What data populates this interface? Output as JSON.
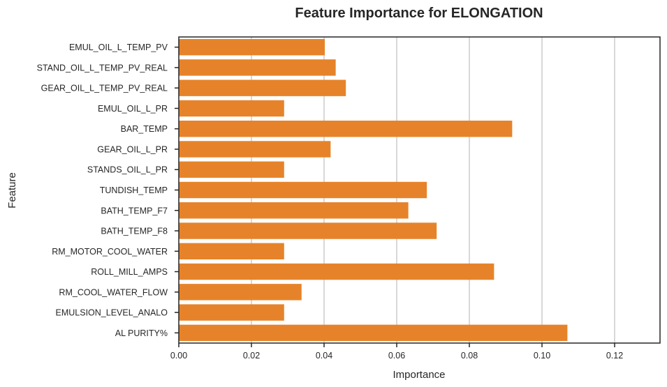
{
  "chart_data": {
    "type": "bar",
    "orientation": "horizontal",
    "title": "Feature Importance for ELONGATION",
    "xlabel": "Importance",
    "ylabel": "Feature",
    "xlim": [
      0,
      0.1325
    ],
    "xticks": [
      0.0,
      0.02,
      0.04,
      0.06,
      0.08,
      0.1,
      0.12
    ],
    "xtick_labels": [
      "0.00",
      "0.02",
      "0.04",
      "0.06",
      "0.08",
      "0.10",
      "0.12"
    ],
    "grid": "vertical",
    "bar_color": "#e6832a",
    "categories": [
      "EMUL_OIL_L_TEMP_PV",
      "STAND_OIL_L_TEMP_PV_REAL",
      "GEAR_OIL_L_TEMP_PV_REAL",
      "EMUL_OIL_L_PR",
      "BAR_TEMP",
      "GEAR_OIL_L_PR",
      "STANDS_OIL_L_PR",
      "TUNDISH_TEMP",
      "BATH_TEMP_F7",
      "BATH_TEMP_F8",
      "RM_MOTOR_COOL_WATER",
      "ROLL_MILL_AMPS",
      "RM_COOL_WATER_FLOW",
      "EMULSION_LEVEL_ANALO",
      "AL PURITY%"
    ],
    "values": [
      0.0402,
      0.0432,
      0.046,
      0.029,
      0.0918,
      0.0418,
      0.029,
      0.0683,
      0.0632,
      0.071,
      0.029,
      0.0868,
      0.0338,
      0.029,
      0.107
    ]
  }
}
